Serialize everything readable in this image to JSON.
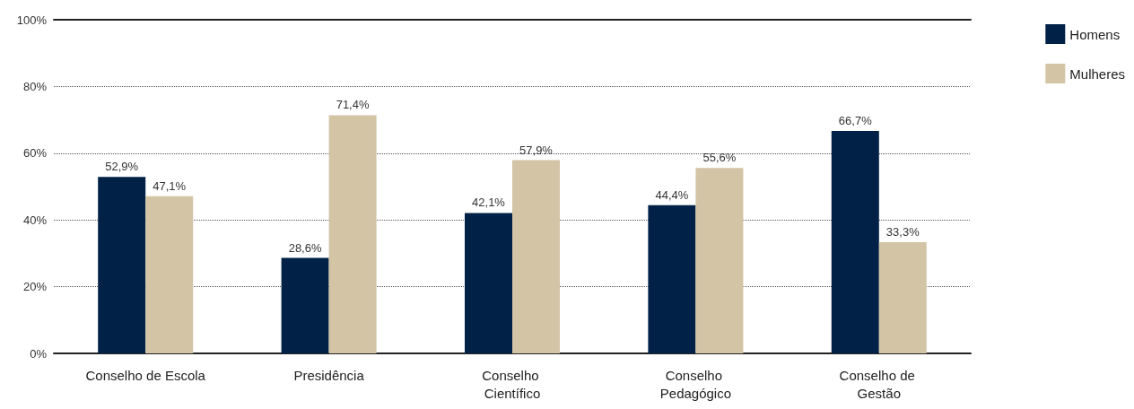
{
  "chart_data": {
    "type": "bar",
    "categories": [
      "Conselho de Escola",
      "Presidência",
      "Conselho Científico",
      "Conselho Pedagógico",
      "Conselho de Gestão"
    ],
    "series": [
      {
        "name": "Homens",
        "color": "#012246",
        "values": [
          52.9,
          28.6,
          42.1,
          44.4,
          66.7
        ],
        "value_labels": [
          "52,9%",
          "28,6%",
          "42,1%",
          "44,4%",
          "66,7%"
        ]
      },
      {
        "name": "Mulheres",
        "color": "#d2c4a5",
        "values": [
          47.1,
          71.4,
          57.9,
          55.6,
          33.3
        ],
        "value_labels": [
          "47,1%",
          "71,4%",
          "57,9%",
          "55,6%",
          "33,3%"
        ]
      }
    ],
    "ylim": [
      0,
      100
    ],
    "yticks": [
      {
        "value": 0,
        "label": "0%"
      },
      {
        "value": 20,
        "label": "20%"
      },
      {
        "value": 40,
        "label": "40%"
      },
      {
        "value": 60,
        "label": "60%"
      },
      {
        "value": 80,
        "label": "80%"
      },
      {
        "value": 100,
        "label": "100%"
      }
    ],
    "grid": "y",
    "line_style": "dotted",
    "legend": "top right"
  }
}
